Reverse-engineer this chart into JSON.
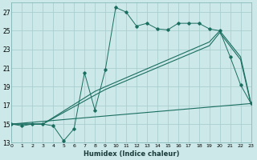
{
  "title": "",
  "xlabel": "Humidex (Indice chaleur)",
  "background_color": "#cce8e8",
  "grid_color": "#aacece",
  "line_color": "#1a6e60",
  "x_min": 0,
  "x_max": 23,
  "y_min": 13,
  "y_max": 28,
  "yticks": [
    13,
    15,
    17,
    19,
    21,
    23,
    25,
    27
  ],
  "xticks": [
    0,
    1,
    2,
    3,
    4,
    5,
    6,
    7,
    8,
    9,
    10,
    11,
    12,
    13,
    14,
    15,
    16,
    17,
    18,
    19,
    20,
    21,
    22,
    23
  ],
  "series1_x": [
    0,
    1,
    2,
    3,
    4,
    5,
    6,
    7,
    8,
    9,
    10,
    11,
    12,
    13,
    14,
    15,
    16,
    17,
    18,
    19,
    20,
    21,
    22,
    23
  ],
  "series1_y": [
    15.0,
    14.8,
    15.0,
    15.0,
    14.8,
    13.2,
    14.5,
    20.5,
    16.5,
    20.8,
    27.5,
    27.0,
    25.5,
    25.8,
    25.2,
    25.1,
    25.8,
    25.8,
    25.8,
    25.2,
    25.0,
    22.2,
    19.2,
    17.2
  ],
  "series2_x": [
    0,
    3,
    8,
    9,
    19,
    20,
    22,
    23
  ],
  "series2_y": [
    15.0,
    15.0,
    18.5,
    19.0,
    23.8,
    25.0,
    22.2,
    17.2
  ],
  "series3_x": [
    0,
    3,
    8,
    9,
    19,
    20,
    22,
    23
  ],
  "series3_y": [
    15.0,
    15.0,
    18.1,
    18.7,
    23.4,
    24.8,
    21.9,
    17.1
  ],
  "series4_x": [
    0,
    23
  ],
  "series4_y": [
    15.0,
    17.2
  ],
  "figsize": [
    3.2,
    2.0
  ],
  "dpi": 100
}
